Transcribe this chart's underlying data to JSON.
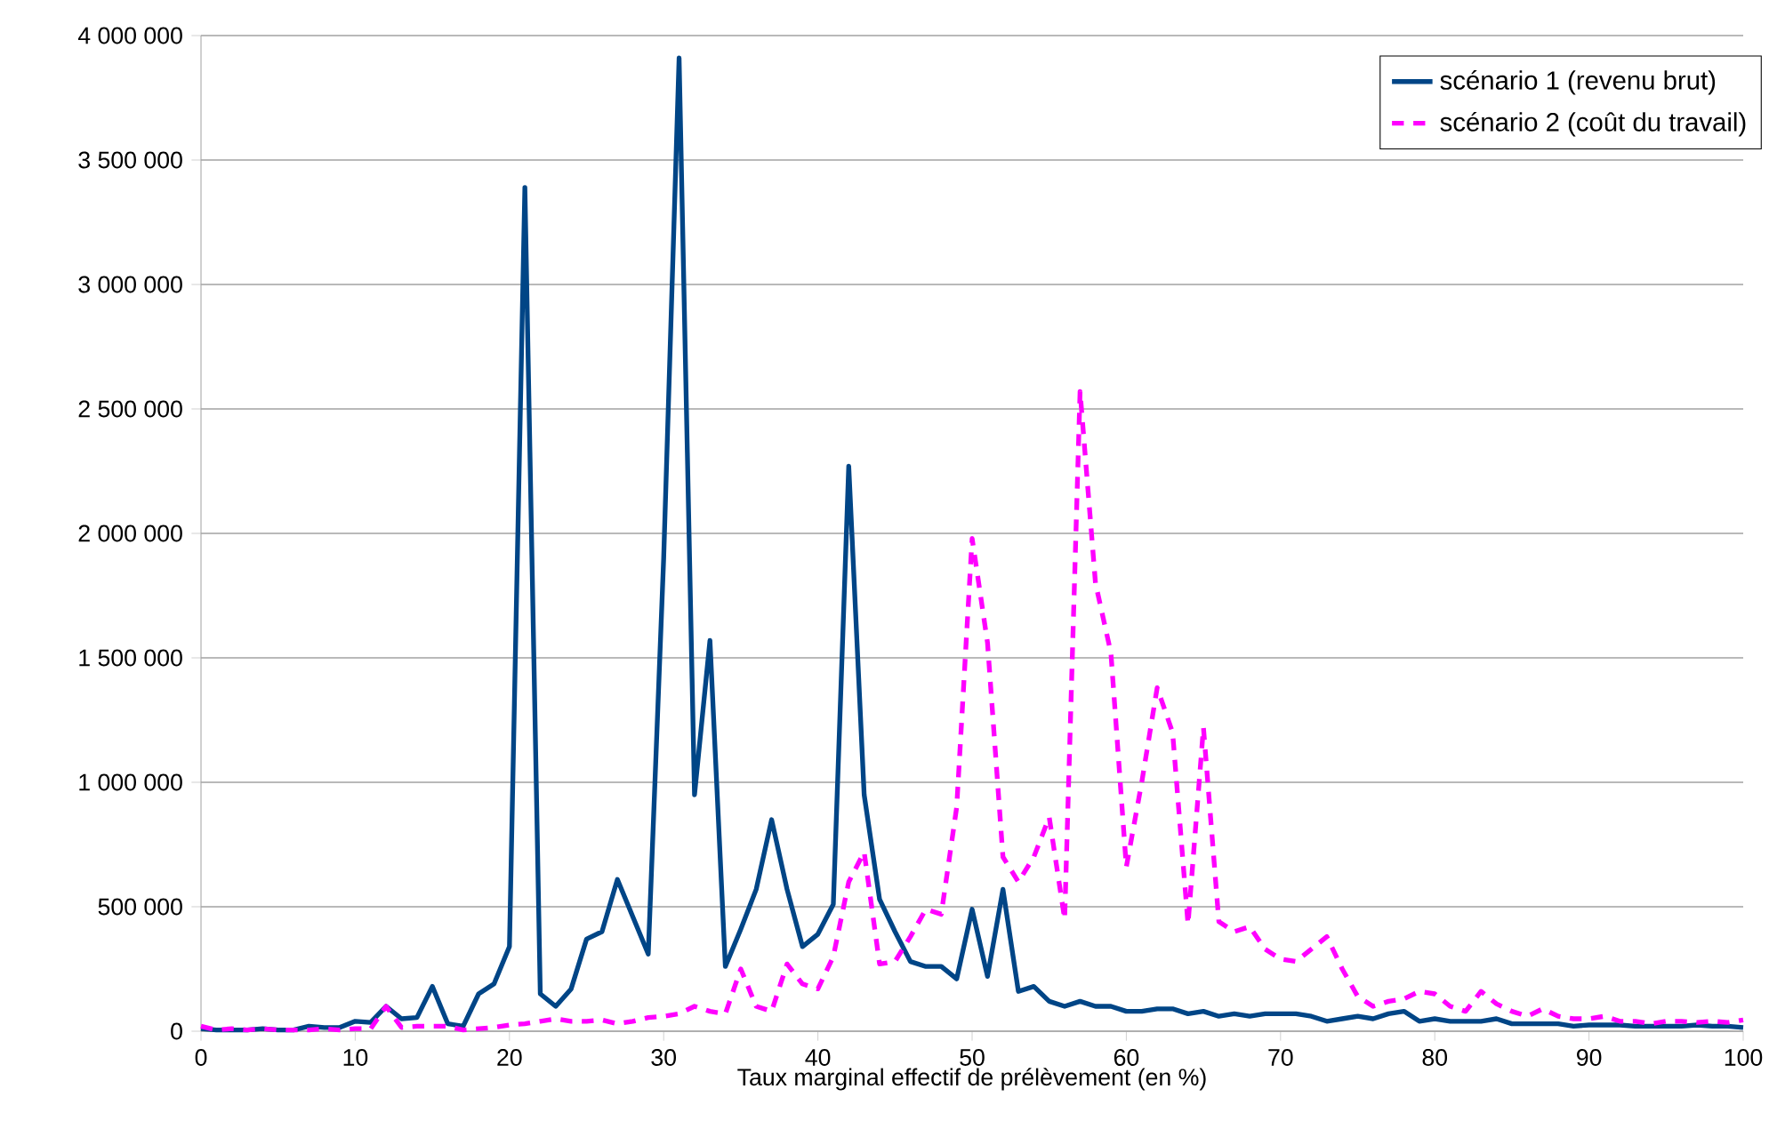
{
  "chart_data": {
    "type": "line",
    "xlabel": "Taux marginal effectif de prélèvement (en %)",
    "x": [
      0,
      1,
      2,
      3,
      4,
      5,
      6,
      7,
      8,
      9,
      10,
      11,
      12,
      13,
      14,
      15,
      16,
      17,
      18,
      19,
      20,
      21,
      22,
      23,
      24,
      25,
      26,
      27,
      28,
      29,
      30,
      31,
      32,
      33,
      34,
      35,
      36,
      37,
      38,
      39,
      40,
      41,
      42,
      43,
      44,
      45,
      46,
      47,
      48,
      49,
      50,
      51,
      52,
      53,
      54,
      55,
      56,
      57,
      58,
      59,
      60,
      61,
      62,
      63,
      64,
      65,
      66,
      67,
      68,
      69,
      70,
      71,
      72,
      73,
      74,
      75,
      76,
      77,
      78,
      79,
      80,
      81,
      82,
      83,
      84,
      85,
      86,
      87,
      88,
      89,
      90,
      91,
      92,
      93,
      94,
      95,
      96,
      97,
      98,
      99,
      100
    ],
    "series": [
      {
        "name": "scénario 1 (revenu brut)",
        "color": "#004586",
        "line_style": "solid",
        "values": [
          10000,
          5000,
          5000,
          5000,
          10000,
          5000,
          5000,
          20000,
          15000,
          15000,
          40000,
          35000,
          100000,
          50000,
          55000,
          180000,
          30000,
          20000,
          150000,
          190000,
          340000,
          3390000,
          150000,
          100000,
          170000,
          370000,
          400000,
          610000,
          460000,
          310000,
          1900000,
          3910000,
          950000,
          1570000,
          260000,
          410000,
          570000,
          850000,
          570000,
          340000,
          390000,
          510000,
          2270000,
          950000,
          530000,
          400000,
          280000,
          260000,
          260000,
          210000,
          490000,
          220000,
          570000,
          160000,
          180000,
          120000,
          100000,
          120000,
          100000,
          100000,
          80000,
          80000,
          90000,
          90000,
          70000,
          80000,
          60000,
          70000,
          60000,
          70000,
          70000,
          70000,
          60000,
          40000,
          50000,
          60000,
          50000,
          70000,
          80000,
          40000,
          50000,
          40000,
          40000,
          40000,
          50000,
          30000,
          30000,
          30000,
          30000,
          20000,
          25000,
          25000,
          25000,
          20000,
          20000,
          20000,
          20000,
          25000,
          20000,
          20000,
          15000
        ]
      },
      {
        "name": "scénario 2 (coût du travail)",
        "color": "#ff00ff",
        "line_style": "dashed",
        "values": [
          20000,
          5000,
          10000,
          5000,
          10000,
          5000,
          5000,
          5000,
          10000,
          5000,
          10000,
          10000,
          100000,
          15000,
          20000,
          20000,
          20000,
          5000,
          10000,
          15000,
          25000,
          30000,
          40000,
          50000,
          40000,
          40000,
          45000,
          30000,
          40000,
          55000,
          60000,
          70000,
          100000,
          80000,
          70000,
          250000,
          100000,
          80000,
          270000,
          190000,
          170000,
          300000,
          600000,
          720000,
          270000,
          280000,
          380000,
          490000,
          470000,
          900000,
          1980000,
          1560000,
          700000,
          600000,
          700000,
          860000,
          450000,
          2570000,
          1800000,
          1520000,
          660000,
          1000000,
          1380000,
          1200000,
          430000,
          1220000,
          440000,
          400000,
          420000,
          330000,
          290000,
          280000,
          330000,
          380000,
          250000,
          140000,
          100000,
          120000,
          130000,
          160000,
          150000,
          100000,
          80000,
          160000,
          110000,
          80000,
          60000,
          90000,
          60000,
          50000,
          50000,
          60000,
          40000,
          40000,
          30000,
          40000,
          40000,
          35000,
          40000,
          35000,
          45000
        ]
      }
    ],
    "xlim": [
      0,
      100
    ],
    "ylim": [
      0,
      4000000
    ],
    "xticks": [
      0,
      10,
      20,
      30,
      40,
      50,
      60,
      70,
      80,
      90,
      100
    ],
    "yticks": [
      {
        "value": 0,
        "label": "0"
      },
      {
        "value": 500000,
        "label": "500 000"
      },
      {
        "value": 1000000,
        "label": "1 000 000"
      },
      {
        "value": 1500000,
        "label": "1 500 000"
      },
      {
        "value": 2000000,
        "label": "2 000 000"
      },
      {
        "value": 2500000,
        "label": "2 500 000"
      },
      {
        "value": 3000000,
        "label": "3 000 000"
      },
      {
        "value": 3500000,
        "label": "3 500 000"
      },
      {
        "value": 4000000,
        "label": "4 000 000"
      }
    ],
    "grid": "y",
    "legend": "top right"
  }
}
